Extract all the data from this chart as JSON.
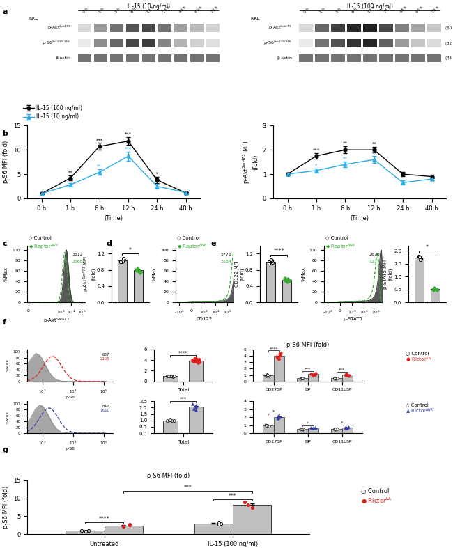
{
  "panel_b_left": {
    "ylabel": "p-S6 MFI (fold)",
    "xlabel": "(Time)",
    "xticklabels": [
      "0 h",
      "1 h",
      "6 h",
      "12 h",
      "24 h",
      "48 h"
    ],
    "ylim": [
      0,
      15.0
    ],
    "yticks": [
      0.0,
      5.0,
      10.0,
      15.0
    ],
    "black_values": [
      1.0,
      4.2,
      10.7,
      11.8,
      3.8,
      1.1
    ],
    "black_errors": [
      0.15,
      0.5,
      0.7,
      0.8,
      0.6,
      0.2
    ],
    "cyan_values": [
      1.0,
      2.8,
      5.4,
      8.7,
      2.5,
      1.2
    ],
    "cyan_errors": [
      0.1,
      0.4,
      0.6,
      0.9,
      0.5,
      0.2
    ]
  },
  "panel_b_right": {
    "ylabel": "p-Akt$^{Ser473}$ MFI\n(fold)",
    "xlabel": "(Time)",
    "xticklabels": [
      "0 h",
      "1 h",
      "6 h",
      "12 h",
      "24 h",
      "48 h"
    ],
    "ylim": [
      0,
      3.0
    ],
    "yticks": [
      0.0,
      1.0,
      2.0,
      3.0
    ],
    "black_values": [
      1.0,
      1.75,
      2.0,
      2.0,
      1.0,
      0.9
    ],
    "black_errors": [
      0.05,
      0.12,
      0.15,
      0.12,
      0.08,
      0.06
    ],
    "cyan_values": [
      1.0,
      1.15,
      1.4,
      1.6,
      0.65,
      0.8
    ],
    "cyan_errors": [
      0.05,
      0.08,
      0.12,
      0.15,
      0.08,
      0.06
    ]
  },
  "colors": {
    "black": "#000000",
    "cyan": "#29abe2",
    "green": "#3aaa35",
    "red": "#e0201c",
    "blue": "#2e3ba8",
    "gray_bar": "#c0c0c0",
    "dark_gray_flow": "#3a3a3a"
  }
}
